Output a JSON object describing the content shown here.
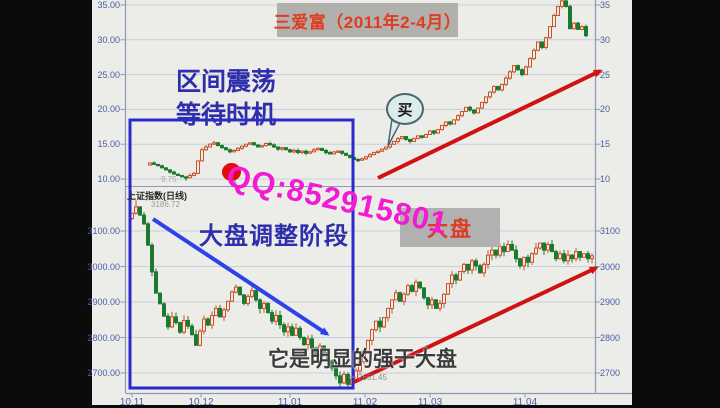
{
  "frame": {
    "stage_bg": "#ecece8",
    "grid_color": "#c8cedc",
    "axis_color": "#8e99b9",
    "colors": {
      "arrow_red": "#d01212",
      "arrow_blue": "#2b43e8",
      "box_blue": "#2a2ac8",
      "red_dot": "#e20a0a",
      "bubble_fill": "#dcecea",
      "bubble_border": "#4a666c"
    }
  },
  "watermark": {
    "text": "QQ:852915801",
    "color": "#f31ad4"
  },
  "top_panel": {
    "title": "三爱富（2011年2-4月）",
    "annotation_line1": "区间震荡",
    "annotation_line2": "等待时机",
    "buy_bubble": "买",
    "low_marker": "9.75",
    "y_labels_left": [
      "35.00",
      "30.00",
      "25.00",
      "20.00",
      "15.00",
      "10.00"
    ],
    "y_labels_right": [
      "35",
      "30",
      "25",
      "20",
      "15",
      "10"
    ]
  },
  "bottom_panel": {
    "index_name": "上证指数(日线)",
    "index_value": "3186.72",
    "annotation": "大盘调整阶段",
    "market_tag": "大盘",
    "low_marker": "2661.45",
    "caption": "它是明显的强于大盘",
    "y_labels_left": [
      "3100.00",
      "3000.00",
      "2900.00",
      "2800.00",
      "2700.00"
    ],
    "y_labels_right": [
      "3100",
      "3000",
      "2900",
      "2800",
      "2700"
    ],
    "x_labels": [
      "10.11",
      "10.12",
      "11.01",
      "11.02",
      "11.03",
      "11.04"
    ]
  },
  "chart_data": [
    {
      "type": "candlestick",
      "title": "三爱富（2011年2-4月）",
      "ylim": [
        9.5,
        36.2
      ],
      "y_ticks": [
        10,
        15,
        20,
        25,
        30,
        35
      ],
      "up_color": "#c95327",
      "down_color": "#1b7a2f",
      "closes": [
        12.3,
        12.1,
        11.9,
        11.6,
        11.3,
        11.0,
        10.7,
        10.5,
        10.3,
        10.2,
        10.5,
        10.8,
        12.6,
        14.2,
        14.6,
        15.0,
        15.2,
        14.8,
        14.5,
        14.2,
        13.9,
        14.1,
        14.4,
        14.7,
        15.0,
        15.2,
        14.9,
        14.6,
        14.8,
        15.1,
        14.9,
        14.6,
        14.3,
        14.5,
        14.2,
        13.9,
        14.1,
        13.8,
        14.0,
        13.7,
        13.9,
        14.2,
        14.4,
        14.1,
        13.8,
        13.6,
        13.9,
        14.0,
        13.7,
        13.4,
        13.1,
        12.8,
        12.7,
        12.9,
        13.2,
        13.5,
        13.8,
        14.0,
        14.3,
        14.6,
        15.0,
        15.4,
        15.8,
        16.1,
        15.7,
        15.4,
        15.8,
        16.2,
        16.0,
        16.4,
        16.9,
        16.6,
        17.1,
        17.7,
        18.2,
        17.9,
        18.5,
        19.1,
        19.7,
        20.3,
        19.9,
        19.5,
        20.2,
        21.0,
        21.8,
        22.5,
        23.3,
        22.8,
        23.6,
        24.5,
        25.4,
        26.3,
        25.7,
        25.0,
        26.1,
        27.3,
        28.5,
        29.7,
        28.9,
        30.3,
        31.9,
        33.5,
        34.8,
        35.6,
        34.8,
        31.6,
        32.4,
        31.5,
        31.9,
        30.6
      ],
      "wick_low_overrides": {
        "9": 9.75
      },
      "wick_high_overrides": {
        "103": 36.1
      }
    },
    {
      "type": "candlestick",
      "title": "上证指数(日线)",
      "last_high": 3186.72,
      "low_point": 2661.45,
      "ylim": [
        2640,
        3190
      ],
      "y_ticks": [
        2700,
        2800,
        2900,
        3000,
        3100
      ],
      "x_ticks": [
        "10.11",
        "10.12",
        "11.01",
        "11.02",
        "11.03",
        "11.04"
      ],
      "up_color": "#c95327",
      "down_color": "#1b7a2f",
      "closes": [
        3150,
        3168,
        3145,
        3120,
        3060,
        2985,
        2925,
        2895,
        2860,
        2830,
        2858,
        2842,
        2815,
        2848,
        2832,
        2808,
        2778,
        2818,
        2852,
        2835,
        2862,
        2882,
        2858,
        2878,
        2902,
        2928,
        2942,
        2920,
        2896,
        2916,
        2932,
        2906,
        2882,
        2896,
        2870,
        2846,
        2862,
        2836,
        2816,
        2830,
        2806,
        2826,
        2800,
        2780,
        2796,
        2770,
        2752,
        2776,
        2758,
        2734,
        2714,
        2692,
        2672,
        2696,
        2668,
        2682,
        2706,
        2732,
        2762,
        2792,
        2822,
        2846,
        2830,
        2856,
        2882,
        2906,
        2926,
        2902,
        2922,
        2946,
        2930,
        2956,
        2940,
        2912,
        2892,
        2906,
        2882,
        2896,
        2922,
        2952,
        2976,
        2962,
        2986,
        3006,
        2990,
        3016,
        3002,
        2982,
        3006,
        3032,
        3046,
        3032,
        3056,
        3042,
        3062,
        3046,
        3022,
        3002,
        3026,
        3012,
        3036,
        3052,
        3066,
        3046,
        3062,
        3042,
        3022,
        3036,
        3016,
        3032,
        3022,
        3042,
        3026,
        3036,
        3022,
        3030
      ],
      "wick_high_overrides": {
        "1": 3186.72
      },
      "wick_low_overrides": {
        "54": 2661.45
      }
    }
  ]
}
